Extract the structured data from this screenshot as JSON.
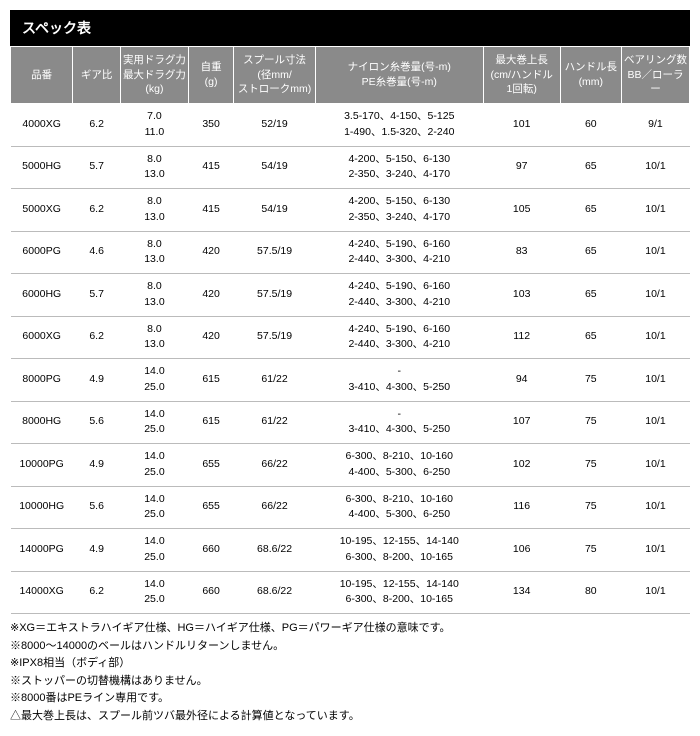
{
  "title": "スペック表",
  "columns": [
    "品番",
    "ギア比",
    "実用ドラグ力\n最大ドラグ力\n(kg)",
    "自重\n(g)",
    "スプール寸法\n(径mm/\nストロークmm)",
    "ナイロン糸巻量(号-m)\nPE糸巻量(号-m)",
    "最大巻上長\n(cm/ハンドル\n1回転)",
    "ハンドル長\n(mm)",
    "ベアリング数\nBB／ローラー"
  ],
  "rows": [
    {
      "code": "4000XG",
      "gear": "6.2",
      "drag": "7.0\n11.0",
      "weight": "350",
      "spool": "52/19",
      "line": "3.5-170、4-150、5-125\n1-490、1.5-320、2-240",
      "retrieve": "101",
      "handle": "60",
      "bearing": "9/1"
    },
    {
      "code": "5000HG",
      "gear": "5.7",
      "drag": "8.0\n13.0",
      "weight": "415",
      "spool": "54/19",
      "line": "4-200、5-150、6-130\n2-350、3-240、4-170",
      "retrieve": "97",
      "handle": "65",
      "bearing": "10/1"
    },
    {
      "code": "5000XG",
      "gear": "6.2",
      "drag": "8.0\n13.0",
      "weight": "415",
      "spool": "54/19",
      "line": "4-200、5-150、6-130\n2-350、3-240、4-170",
      "retrieve": "105",
      "handle": "65",
      "bearing": "10/1"
    },
    {
      "code": "6000PG",
      "gear": "4.6",
      "drag": "8.0\n13.0",
      "weight": "420",
      "spool": "57.5/19",
      "line": "4-240、5-190、6-160\n2-440、3-300、4-210",
      "retrieve": "83",
      "handle": "65",
      "bearing": "10/1"
    },
    {
      "code": "6000HG",
      "gear": "5.7",
      "drag": "8.0\n13.0",
      "weight": "420",
      "spool": "57.5/19",
      "line": "4-240、5-190、6-160\n2-440、3-300、4-210",
      "retrieve": "103",
      "handle": "65",
      "bearing": "10/1"
    },
    {
      "code": "6000XG",
      "gear": "6.2",
      "drag": "8.0\n13.0",
      "weight": "420",
      "spool": "57.5/19",
      "line": "4-240、5-190、6-160\n2-440、3-300、4-210",
      "retrieve": "112",
      "handle": "65",
      "bearing": "10/1"
    },
    {
      "code": "8000PG",
      "gear": "4.9",
      "drag": "14.0\n25.0",
      "weight": "615",
      "spool": "61/22",
      "line": "-\n3-410、4-300、5-250",
      "retrieve": "94",
      "handle": "75",
      "bearing": "10/1"
    },
    {
      "code": "8000HG",
      "gear": "5.6",
      "drag": "14.0\n25.0",
      "weight": "615",
      "spool": "61/22",
      "line": "-\n3-410、4-300、5-250",
      "retrieve": "107",
      "handle": "75",
      "bearing": "10/1"
    },
    {
      "code": "10000PG",
      "gear": "4.9",
      "drag": "14.0\n25.0",
      "weight": "655",
      "spool": "66/22",
      "line": "6-300、8-210、10-160\n4-400、5-300、6-250",
      "retrieve": "102",
      "handle": "75",
      "bearing": "10/1"
    },
    {
      "code": "10000HG",
      "gear": "5.6",
      "drag": "14.0\n25.0",
      "weight": "655",
      "spool": "66/22",
      "line": "6-300、8-210、10-160\n4-400、5-300、6-250",
      "retrieve": "116",
      "handle": "75",
      "bearing": "10/1"
    },
    {
      "code": "14000PG",
      "gear": "4.9",
      "drag": "14.0\n25.0",
      "weight": "660",
      "spool": "68.6/22",
      "line": "10-195、12-155、14-140\n6-300、8-200、10-165",
      "retrieve": "106",
      "handle": "75",
      "bearing": "10/1"
    },
    {
      "code": "14000XG",
      "gear": "6.2",
      "drag": "14.0\n25.0",
      "weight": "660",
      "spool": "68.6/22",
      "line": "10-195、12-155、14-140\n6-300、8-200、10-165",
      "retrieve": "134",
      "handle": "80",
      "bearing": "10/1"
    }
  ],
  "notes": [
    "※XG＝エキストラハイギア仕様、HG＝ハイギア仕様、PG＝パワーギア仕様の意味です。",
    "※8000〜14000のベールはハンドルリターンしません。",
    "※IPX8相当（ボディ部）",
    "※ストッパーの切替機構はありません。",
    "※8000番はPEライン専用です。",
    "△最大巻上長は、スプール前ツバ最外径による計算値となっています。"
  ]
}
